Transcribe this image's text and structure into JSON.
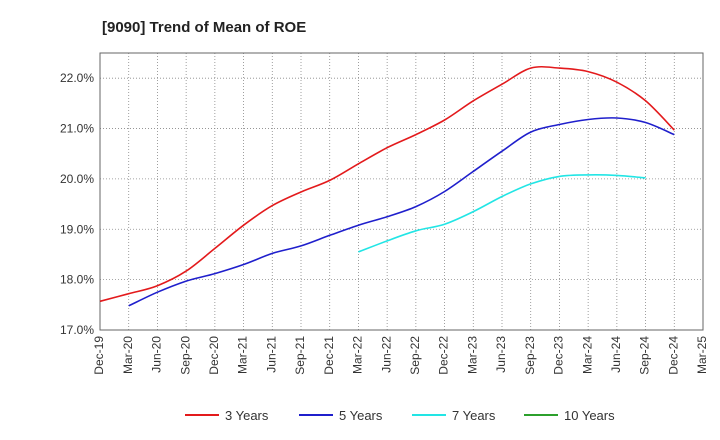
{
  "chart_data": {
    "type": "line",
    "title": "[9090]  Trend of Mean of ROE",
    "xlabel": "",
    "ylabel": "",
    "x_tick_labels": [
      "Dec-19",
      "Mar-20",
      "Jun-20",
      "Sep-20",
      "Dec-20",
      "Mar-21",
      "Jun-21",
      "Sep-21",
      "Dec-21",
      "Mar-22",
      "Jun-22",
      "Sep-22",
      "Dec-22",
      "Mar-23",
      "Jun-23",
      "Sep-23",
      "Dec-23",
      "Mar-24",
      "Jun-24",
      "Sep-24",
      "Dec-24",
      "Mar-25"
    ],
    "y_tick_labels": [
      "17.0%",
      "18.0%",
      "19.0%",
      "20.0%",
      "21.0%",
      "22.0%"
    ],
    "ylim": [
      17.0,
      22.5
    ],
    "grid": true,
    "legend_position": "bottom",
    "series": [
      {
        "name": "3 Years",
        "color": "#e31a1c",
        "start_index": 0,
        "values": [
          17.57,
          17.72,
          17.88,
          18.17,
          18.62,
          19.08,
          19.47,
          19.74,
          19.97,
          20.3,
          20.62,
          20.88,
          21.17,
          21.55,
          21.88,
          22.2,
          22.2,
          22.13,
          21.92,
          21.55,
          20.97
        ]
      },
      {
        "name": "5 Years",
        "color": "#1f1fcc",
        "start_index": 1,
        "values": [
          17.48,
          17.75,
          17.97,
          18.12,
          18.3,
          18.52,
          18.67,
          18.88,
          19.08,
          19.25,
          19.45,
          19.75,
          20.15,
          20.55,
          20.93,
          21.08,
          21.18,
          21.21,
          21.12,
          20.88
        ]
      },
      {
        "name": "7 Years",
        "color": "#22e5e5",
        "start_index": 9,
        "values": [
          18.55,
          18.77,
          18.97,
          19.1,
          19.35,
          19.65,
          19.9,
          20.05,
          20.08,
          20.07,
          20.02
        ]
      },
      {
        "name": "10 Years",
        "color": "#2ca02c",
        "start_index": 0,
        "values": []
      }
    ]
  }
}
